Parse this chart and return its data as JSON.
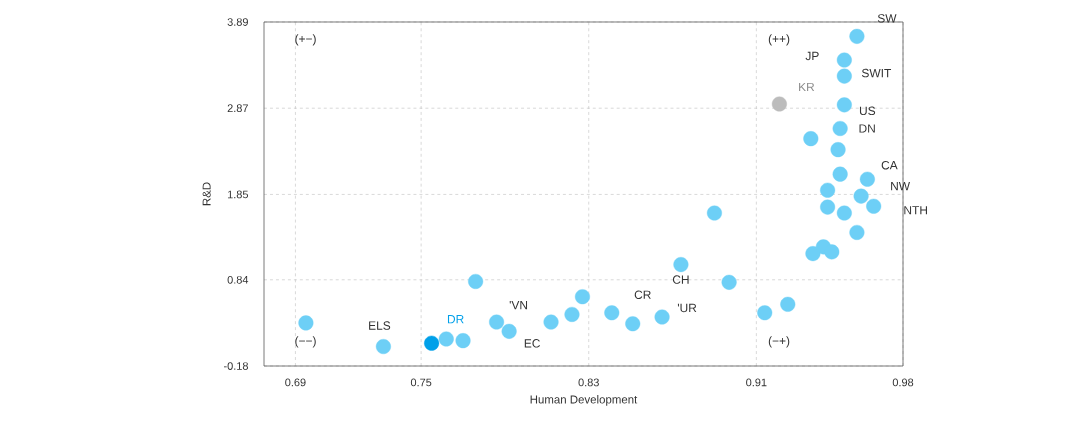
{
  "chart_data": {
    "type": "scatter",
    "xlabel": "Human Development",
    "ylabel": "R&D",
    "x": [
      0.695,
      0.732,
      0.755,
      0.762,
      0.77,
      0.776,
      0.786,
      0.792,
      0.812,
      0.822,
      0.827,
      0.841,
      0.851,
      0.865,
      0.874,
      0.89,
      0.897,
      0.914,
      0.925,
      0.921,
      0.936,
      0.937,
      0.942,
      0.946,
      0.944,
      0.944,
      0.949,
      0.95,
      0.95,
      0.952,
      0.952,
      0.952,
      0.952,
      0.958,
      0.958,
      0.96,
      0.963,
      0.966
    ],
    "values": [
      0.33,
      0.05,
      0.09,
      0.14,
      0.12,
      0.82,
      0.34,
      0.23,
      0.34,
      0.43,
      0.64,
      0.45,
      0.32,
      0.4,
      1.02,
      1.63,
      0.81,
      0.45,
      0.55,
      2.92,
      2.51,
      1.15,
      1.23,
      1.17,
      1.9,
      1.7,
      2.38,
      2.09,
      2.63,
      2.91,
      3.25,
      3.44,
      1.63,
      3.72,
      1.4,
      1.83,
      2.03,
      1.71
    ],
    "colors": [
      "#6dcff6",
      "#6dcff6",
      "#00a0e9",
      "#6dcff6",
      "#6dcff6",
      "#6dcff6",
      "#6dcff6",
      "#6dcff6",
      "#6dcff6",
      "#6dcff6",
      "#6dcff6",
      "#6dcff6",
      "#6dcff6",
      "#6dcff6",
      "#6dcff6",
      "#6dcff6",
      "#6dcff6",
      "#6dcff6",
      "#6dcff6",
      "#bcbcbc",
      "#6dcff6",
      "#6dcff6",
      "#6dcff6",
      "#6dcff6",
      "#6dcff6",
      "#6dcff6",
      "#6dcff6",
      "#6dcff6",
      "#6dcff6",
      "#6dcff6",
      "#6dcff6",
      "#6dcff6",
      "#6dcff6",
      "#6dcff6",
      "#6dcff6",
      "#6dcff6",
      "#6dcff6",
      "#6dcff6"
    ],
    "marker": "circle",
    "xlim": [
      0.675,
      0.98
    ],
    "xticks": [
      0.69,
      0.75,
      0.83,
      0.91,
      0.98
    ],
    "ylim": [
      -0.18,
      3.89
    ],
    "yticks": [
      -0.18,
      0.84,
      1.85,
      2.87,
      3.89
    ],
    "grid": true,
    "annotations": [
      "(+−)",
      "(++)",
      "(−−)",
      "(−+)",
      {
        "text": "SW",
        "x": 0.958,
        "y": 3.72
      },
      {
        "text": "JP",
        "x": 0.952,
        "y": 3.44
      },
      {
        "text": "SWIT",
        "x": 0.952,
        "y": 3.25
      },
      {
        "text": "KR",
        "x": 0.921,
        "y": 2.92
      },
      {
        "text": "US",
        "x": 0.952,
        "y": 2.91
      },
      {
        "text": "DN",
        "x": 0.95,
        "y": 2.63
      },
      {
        "text": "CA",
        "x": 0.963,
        "y": 2.03
      },
      {
        "text": "NW",
        "x": 0.96,
        "y": 1.83
      },
      {
        "text": "NTH",
        "x": 0.966,
        "y": 1.71
      },
      {
        "text": "CH",
        "x": 0.874,
        "y": 1.02
      },
      {
        "text": "'UR",
        "x": 0.865,
        "y": 0.4
      },
      {
        "text": "CR",
        "x": 0.851,
        "y": 0.32
      },
      {
        "text": "'VN",
        "x": 0.786,
        "y": 0.34
      },
      {
        "text": "ELS",
        "x": 0.732,
        "y": 0.05
      },
      {
        "text": "DR",
        "x": 0.755,
        "y": 0.09
      },
      {
        "text": "EC",
        "x": 0.792,
        "y": 0.23
      }
    ]
  }
}
